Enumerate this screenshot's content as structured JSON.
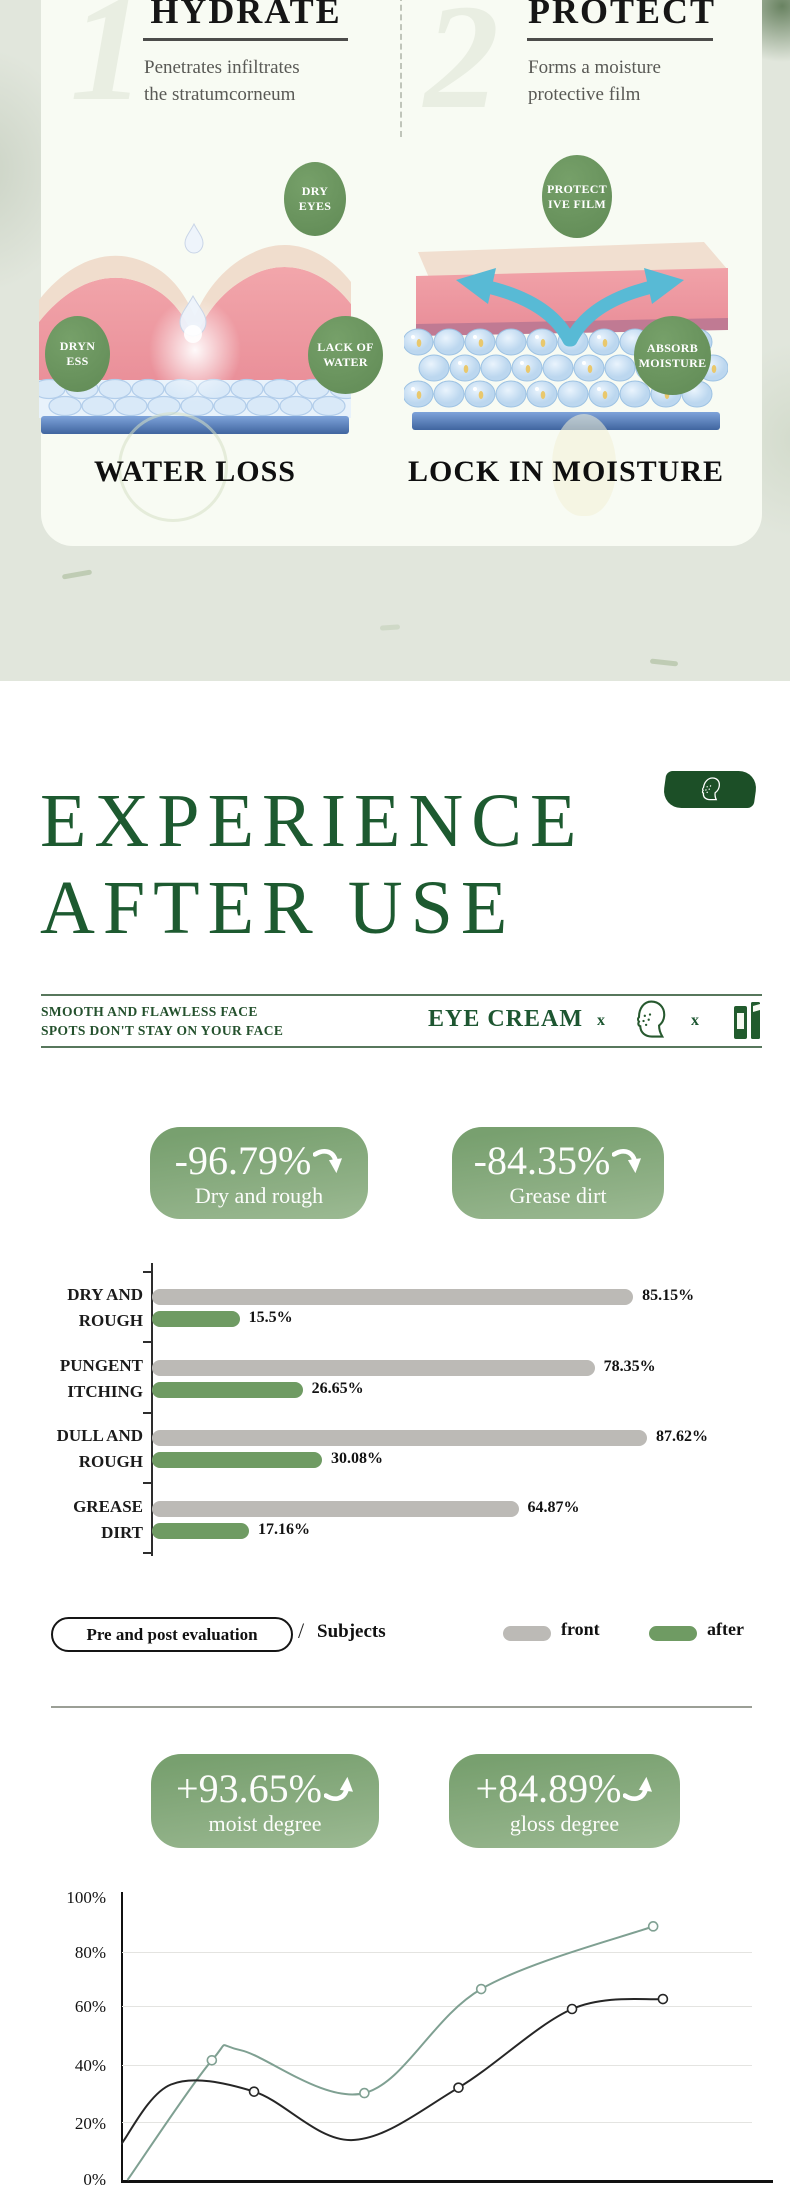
{
  "page": {
    "bg_color": "#ffffff",
    "band_color": "#e1e6dc",
    "card_color": "#f8fbf3",
    "accent_green": "#1d5a30",
    "badge_green_dark": "#1c4f27"
  },
  "steps": {
    "items": [
      {
        "number": "1",
        "title": "HYDRATE",
        "desc_line1": "Penetrates infiltrates",
        "desc_line2": "the stratumcorneum",
        "caption": "WATER LOSS",
        "labels": [
          {
            "line1": "DRY",
            "line2": "EYES"
          },
          {
            "line1": "DRYN",
            "line2": "ESS"
          },
          {
            "line1": "LACK OF",
            "line2": "WATER"
          }
        ]
      },
      {
        "number": "2",
        "title": "PROTECT",
        "desc_line1": "Forms a moisture",
        "desc_line2": "protective film",
        "caption": "LOCK IN MOISTURE",
        "labels": [
          {
            "line1": "PROTECT",
            "line2": "IVE FILM"
          },
          {
            "line1": "ABSORB",
            "line2": "MOISTURE"
          }
        ]
      }
    ]
  },
  "experience": {
    "title_line1": "EXPERIENCE",
    "title_line2": "AFTER USE",
    "corner_tag_icon": "face-profile-icon"
  },
  "collab": {
    "left_line1": "SMOOTH AND FLAWLESS FACE",
    "left_line2": "SPOTS DON'T STAY ON YOUR FACE",
    "product": "EYE CREAM",
    "x_first": "x",
    "x_second": "x",
    "icons": [
      "face-profile-icon",
      "cosmetic-tube-icon"
    ]
  },
  "decrease_badges": [
    {
      "value": "-96.79%",
      "label": "Dry and rough",
      "arrow": "curved-down-arrow"
    },
    {
      "value": "-84.35%",
      "label": "Grease dirt",
      "arrow": "curved-down-arrow"
    }
  ],
  "increase_badges": [
    {
      "value": "+93.65%",
      "label": "moist degree",
      "arrow": "curved-up-arrow"
    },
    {
      "value": "+84.89%",
      "label": "gloss degree",
      "arrow": "curved-up-arrow"
    }
  ],
  "legend": {
    "pill": "Pre and post evaluation",
    "separator": "/",
    "subjects": "Subjects",
    "front_label": "front",
    "after_label": "after",
    "front_color": "#bcbab6",
    "after_color": "#6f9b63"
  },
  "chart_data": [
    {
      "type": "bar",
      "orientation": "horizontal",
      "categories": [
        [
          "DRY AND",
          "ROUGH"
        ],
        [
          "PUNGENT",
          "ITCHING"
        ],
        [
          "DULL AND",
          "ROUGH"
        ],
        [
          "GREASE",
          "DIRT"
        ]
      ],
      "series": [
        {
          "name": "front",
          "color": "#bcbab6",
          "values": [
            85.15,
            78.35,
            87.62,
            64.87
          ],
          "labels": [
            "85.15%",
            "78.35%",
            "87.62%",
            "64.87%"
          ]
        },
        {
          "name": "after",
          "color": "#6f9b63",
          "values": [
            15.5,
            26.65,
            30.08,
            17.16
          ],
          "labels": [
            "15.5%",
            "26.65%",
            "30.08%",
            "17.16%"
          ]
        }
      ],
      "xlim": [
        0,
        100
      ],
      "value_suffix": "%",
      "grid": false,
      "legend_position": "bottom"
    },
    {
      "type": "line",
      "yticks": [
        "100%",
        "80%",
        "60%",
        "40%",
        "20%",
        "0%"
      ],
      "ylim": [
        0,
        100
      ],
      "grid": true,
      "series": [
        {
          "name": "after (green)",
          "color": "#7fa092",
          "points": [
            [
              1,
              0
            ],
            [
              14,
              42
            ],
            [
              18.5,
              45.5
            ],
            [
              37.5,
              30.5
            ],
            [
              55.5,
              67
            ],
            [
              82,
              89
            ]
          ],
          "marker_indices": [
            1,
            3,
            4,
            5
          ]
        },
        {
          "name": "front (black)",
          "color": "#262626",
          "points": [
            [
              0,
              12.5
            ],
            [
              7.7,
              33.5
            ],
            [
              20.5,
              31
            ],
            [
              35.5,
              14
            ],
            [
              52,
              32.4
            ],
            [
              69.5,
              60
            ],
            [
              83.5,
              63.5
            ]
          ],
          "marker_indices": [
            2,
            4,
            5,
            6
          ]
        }
      ]
    }
  ]
}
